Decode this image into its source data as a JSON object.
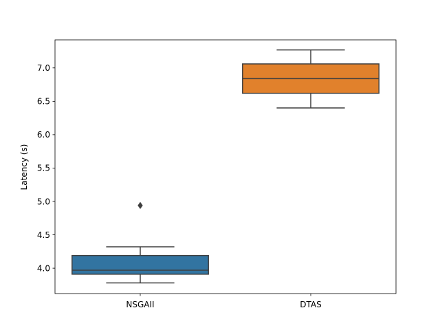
{
  "chart_data": {
    "type": "box",
    "title": "",
    "xlabel": "",
    "ylabel": "Latency (s)",
    "categories": [
      "NSGAII",
      "DTAS"
    ],
    "ylim": [
      3.62,
      7.42
    ],
    "yticks": [
      "4.0",
      "4.5",
      "5.0",
      "5.5",
      "6.0",
      "6.5",
      "7.0"
    ],
    "grid": false,
    "series": [
      {
        "category": "NSGAII",
        "color": "#3274a1",
        "whisker_low": 3.78,
        "q1": 3.91,
        "median": 3.97,
        "q3": 4.19,
        "whisker_high": 4.32,
        "outliers": [
          4.94
        ]
      },
      {
        "category": "DTAS",
        "color": "#e1812c",
        "whisker_low": 6.4,
        "q1": 6.62,
        "median": 6.84,
        "q3": 7.06,
        "whisker_high": 7.27,
        "outliers": []
      }
    ]
  }
}
